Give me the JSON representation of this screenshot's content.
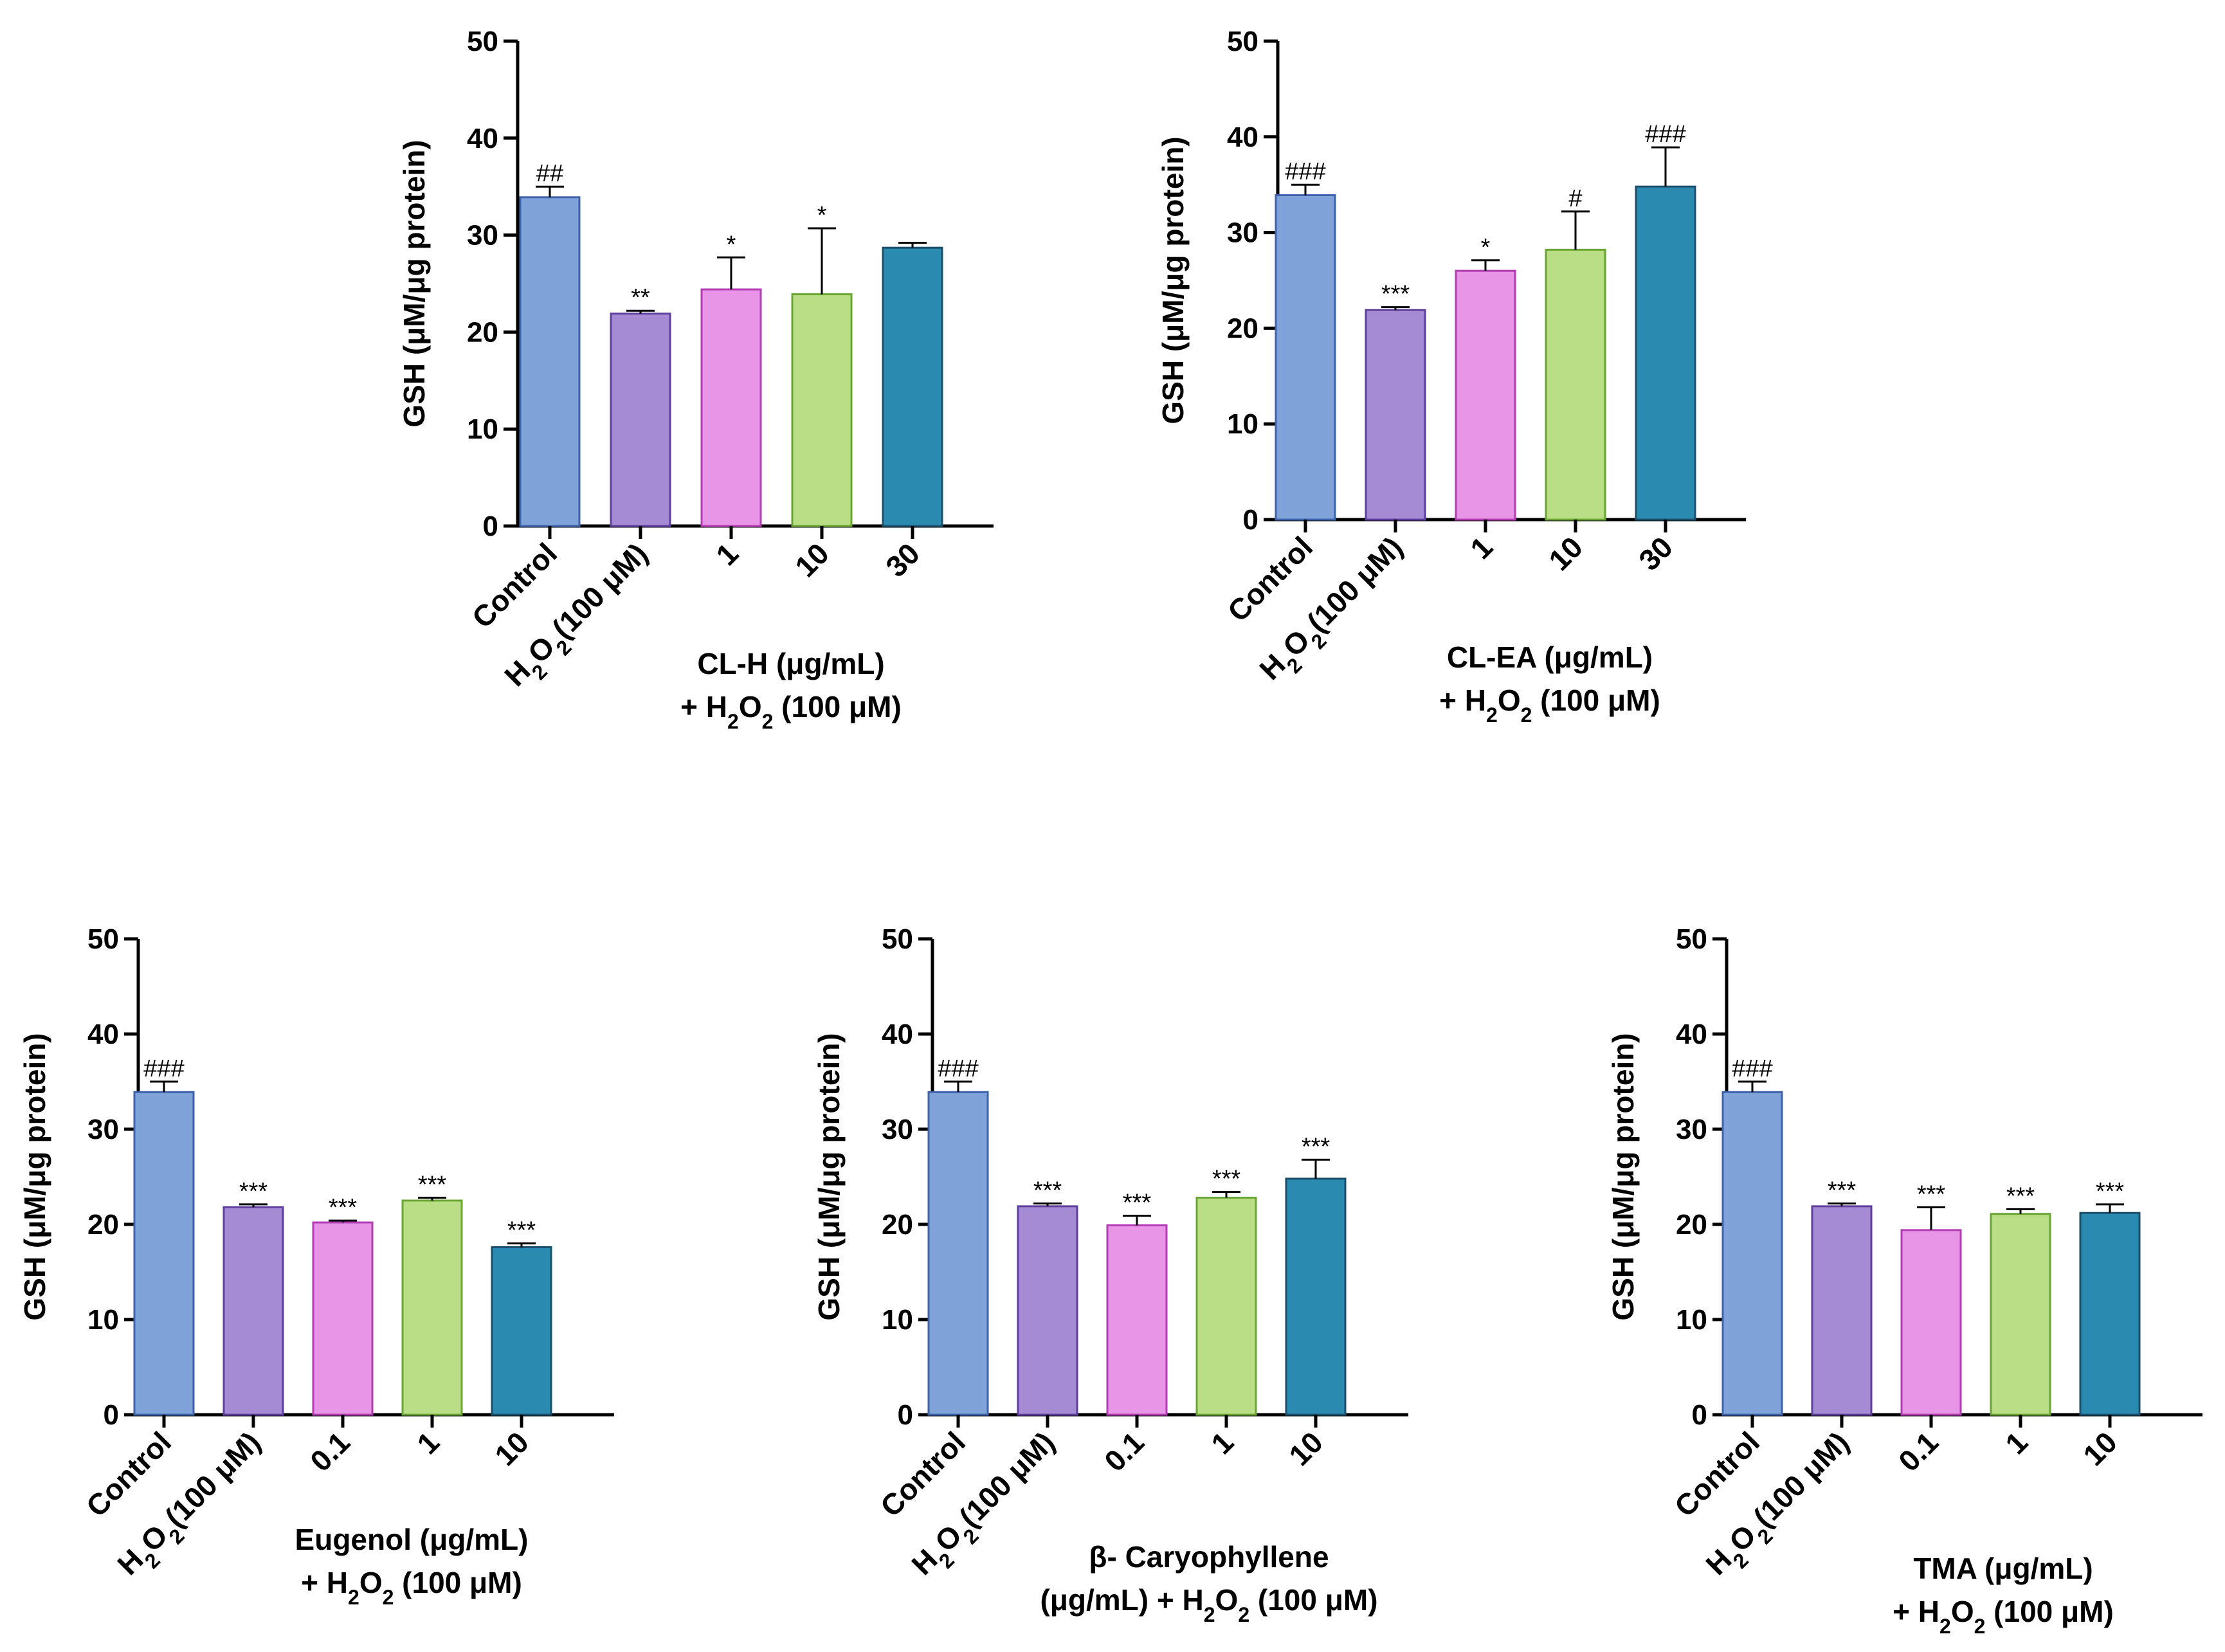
{
  "chart_data": [
    {
      "type": "bar",
      "id": "panel-cl-h",
      "ylabel": "GSH (μM/μg protein)",
      "ylim": [
        0,
        50
      ],
      "yticks": [
        0,
        10,
        20,
        30,
        40,
        50
      ],
      "categories": [
        {
          "text": "Control"
        },
        {
          "text": "H",
          "sub": "2",
          "text2": "O",
          "sub2": "2",
          "text3": "(100 μM)"
        },
        {
          "text": "1"
        },
        {
          "text": "10"
        },
        {
          "text": "30"
        }
      ],
      "values": [
        33.9,
        21.9,
        24.4,
        23.9,
        28.7
      ],
      "errors": [
        1.1,
        0.3,
        3.3,
        6.8,
        0.5
      ],
      "significance": [
        "##",
        "**",
        "*",
        "*",
        ""
      ],
      "group_label": {
        "line1": "CL-H (μg/mL)",
        "line2_pre": "+ H",
        "line2_sub1": "2",
        "line2_mid": "O",
        "line2_sub2": "2",
        "line2_post": " (100 μM)"
      }
    },
    {
      "type": "bar",
      "id": "panel-cl-ea",
      "ylabel": "GSH (μM/μg protein)",
      "ylim": [
        0,
        50
      ],
      "yticks": [
        0,
        10,
        20,
        30,
        40,
        50
      ],
      "categories": [
        {
          "text": "Control"
        },
        {
          "text": "H",
          "sub": "2",
          "text2": "O",
          "sub2": "2",
          "text3": "(100 μM)"
        },
        {
          "text": "1"
        },
        {
          "text": "10"
        },
        {
          "text": "30"
        }
      ],
      "values": [
        33.9,
        21.9,
        26.0,
        28.2,
        34.8
      ],
      "errors": [
        1.1,
        0.3,
        1.1,
        4.0,
        4.1
      ],
      "significance": [
        "###",
        "***",
        "*",
        "#",
        "###"
      ],
      "group_label": {
        "line1": "CL-EA (μg/mL)",
        "line2_pre": "+ H",
        "line2_sub1": "2",
        "line2_mid": "O",
        "line2_sub2": "2",
        "line2_post": " (100 μM)"
      }
    },
    {
      "type": "bar",
      "id": "panel-eugenol",
      "ylabel": "GSH (μM/μg protein)",
      "ylim": [
        0,
        50
      ],
      "yticks": [
        0,
        10,
        20,
        30,
        40,
        50
      ],
      "categories": [
        {
          "text": "Control"
        },
        {
          "text": "H",
          "sub": "2",
          "text2": "O",
          "sub2": "2",
          "text3": "(100 μM)"
        },
        {
          "text": "0.1"
        },
        {
          "text": "1"
        },
        {
          "text": "10"
        }
      ],
      "values": [
        33.9,
        21.8,
        20.2,
        22.5,
        17.6
      ],
      "errors": [
        1.1,
        0.3,
        0.2,
        0.3,
        0.4
      ],
      "significance": [
        "###",
        "***",
        "***",
        "***",
        "***"
      ],
      "group_label": {
        "line1": "Eugenol (μg/mL)",
        "line2_pre": "+ H",
        "line2_sub1": "2",
        "line2_mid": "O",
        "line2_sub2": "2",
        "line2_post": " (100 μM)"
      }
    },
    {
      "type": "bar",
      "id": "panel-caryophyllene",
      "ylabel": "GSH (μM/μg protein)",
      "ylim": [
        0,
        50
      ],
      "yticks": [
        0,
        10,
        20,
        30,
        40,
        50
      ],
      "categories": [
        {
          "text": "Control"
        },
        {
          "text": "H",
          "sub": "2",
          "text2": "O",
          "sub2": "2",
          "text3": "(100 μM)"
        },
        {
          "text": "0.1"
        },
        {
          "text": "1"
        },
        {
          "text": "10"
        }
      ],
      "values": [
        33.9,
        21.9,
        19.9,
        22.8,
        24.8
      ],
      "errors": [
        1.1,
        0.3,
        1.0,
        0.6,
        2.0
      ],
      "significance": [
        "###",
        "***",
        "***",
        "***",
        "***"
      ],
      "group_label": {
        "line1": "β- Caryophyllene",
        "line2_pre": "(μg/mL) + H",
        "line2_sub1": "2",
        "line2_mid": "O",
        "line2_sub2": "2",
        "line2_post": " (100 μM)"
      }
    },
    {
      "type": "bar",
      "id": "panel-tma",
      "ylabel": "GSH (μM/μg protein)",
      "ylim": [
        0,
        50
      ],
      "yticks": [
        0,
        10,
        20,
        30,
        40,
        50
      ],
      "categories": [
        {
          "text": "Control"
        },
        {
          "text": "H",
          "sub": "2",
          "text2": "O",
          "sub2": "2",
          "text3": "(100 μM)"
        },
        {
          "text": "0.1"
        },
        {
          "text": "1"
        },
        {
          "text": "10"
        }
      ],
      "values": [
        33.9,
        21.9,
        19.4,
        21.1,
        21.2
      ],
      "errors": [
        1.1,
        0.3,
        2.4,
        0.5,
        0.9
      ],
      "significance": [
        "###",
        "***",
        "***",
        "***",
        "***"
      ],
      "group_label": {
        "line1": "TMA (μg/mL)",
        "line2_pre": "+ H",
        "line2_sub1": "2",
        "line2_mid": "O",
        "line2_sub2": "2",
        "line2_post": " (100 μM)"
      }
    }
  ],
  "bar_colors": [
    {
      "fill": "#7fa3d8",
      "stroke": "#3e63aa"
    },
    {
      "fill": "#a48bd3",
      "stroke": "#5f3f9e"
    },
    {
      "fill": "#e895e8",
      "stroke": "#b23db2"
    },
    {
      "fill": "#bade85",
      "stroke": "#6aa534"
    },
    {
      "fill": "#2b8ab0",
      "stroke": "#1b4f6b"
    }
  ]
}
